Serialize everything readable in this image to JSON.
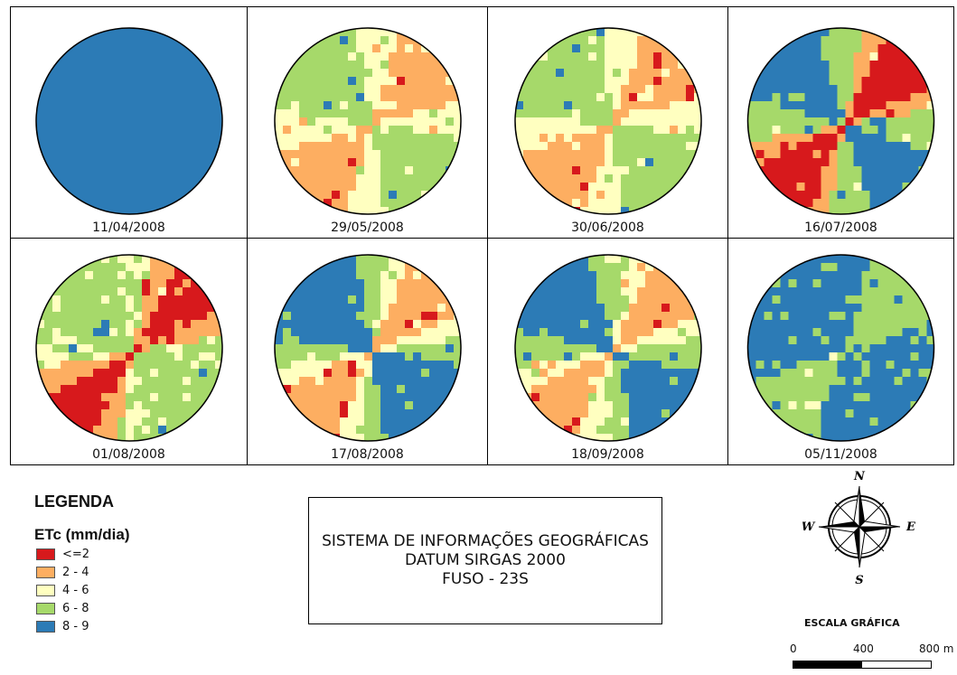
{
  "panels": [
    {
      "date": "11/04/2008",
      "base": 4,
      "pattern": "solid"
    },
    {
      "date": "29/05/2008",
      "base": 2,
      "pattern": "light"
    },
    {
      "date": "30/06/2008",
      "base": 2,
      "pattern": "light2"
    },
    {
      "date": "16/07/2008",
      "base": 3,
      "pattern": "mixed"
    },
    {
      "date": "01/08/2008",
      "base": 3,
      "pattern": "warm"
    },
    {
      "date": "17/08/2008",
      "base": 3,
      "pattern": "blue"
    },
    {
      "date": "18/09/2008",
      "base": 3,
      "pattern": "mid"
    },
    {
      "date": "05/11/2008",
      "base": 4,
      "pattern": "dark"
    }
  ],
  "legend": {
    "title": "LEGENDA",
    "subtitle": "ETc (mm/dia)",
    "classes": [
      {
        "label": "<=2",
        "color": "#d7191c"
      },
      {
        "label": "2 - 4",
        "color": "#fdae61"
      },
      {
        "label": "4 - 6",
        "color": "#ffffc0"
      },
      {
        "label": "6 - 8",
        "color": "#a6d96a"
      },
      {
        "label": "8 - 9",
        "color": "#2c7bb6"
      }
    ]
  },
  "info": {
    "line1": "SISTEMA DE INFORMAÇÕES GEOGRÁFICAS",
    "line2": "DATUM SIRGAS 2000",
    "line3": "FUSO - 23S"
  },
  "compass": {
    "n": "N",
    "s": "S",
    "e": "E",
    "w": "W"
  },
  "scale": {
    "title": "ESCALA GRÁFICA",
    "label_0": "0",
    "label_mid": "400",
    "label_end": "800 m"
  }
}
